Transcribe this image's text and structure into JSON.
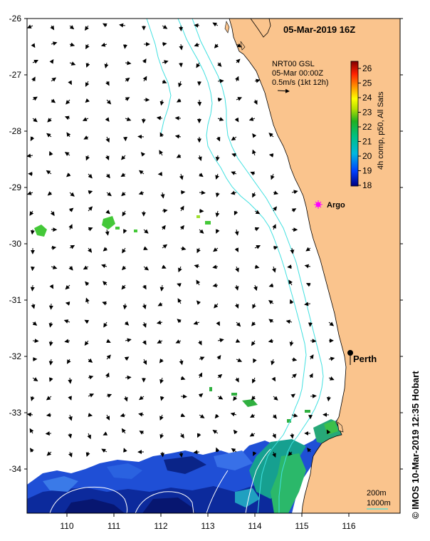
{
  "title": "05-Mar-2019 16Z",
  "current_info": {
    "line1": "NRT00 GSL",
    "line2": "05-Mar 00:00Z",
    "line3": "0.5m/s (1kt 12h)"
  },
  "colorbar": {
    "label": "4h comp, p50, All Sats",
    "ticks": [
      "26",
      "25",
      "24",
      "23",
      "22",
      "21",
      "20",
      "19",
      "18"
    ],
    "min": 18,
    "max": 26.5
  },
  "places": {
    "argo_label": "Argo",
    "perth_label": "Perth"
  },
  "isobath_legend": {
    "shallow": "200m",
    "deep": "1000m"
  },
  "credit": "© IMOS 10-Mar-2019 12:35 Hobart",
  "axes": {
    "lat_ticks": [
      "-26",
      "-27",
      "-28",
      "-29",
      "-30",
      "-31",
      "-32",
      "-33",
      "-34"
    ],
    "lon_ticks": [
      "110",
      "111",
      "112",
      "113",
      "114",
      "115",
      "116"
    ]
  },
  "colors": {
    "land": "#fac48d",
    "isobath": "#40e0e0",
    "argo_marker": "#ff00ff",
    "sst_cold": "#0a1e8c",
    "sst_warm": "#33cc33"
  }
}
